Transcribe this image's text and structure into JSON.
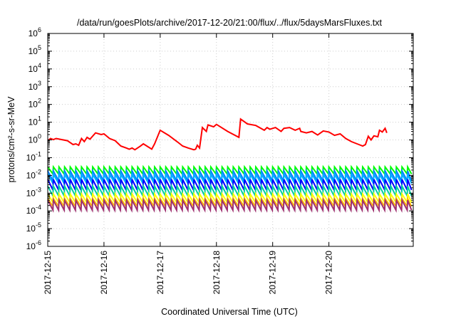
{
  "chart_data": {
    "type": "line",
    "title": "/data/run/goesPlots/archive/2017-12-20/21:00/flux/../flux/5daysMarsFluxes.txt",
    "xlabel": "Coordinated Universal Time (UTC)",
    "ylabel": "protons/cm²-s-sr-MeV",
    "yscale": "log",
    "ylim_exp": [
      -6,
      6
    ],
    "y_ticks": [
      {
        "base": "10",
        "exp": "6"
      },
      {
        "base": "10",
        "exp": "5"
      },
      {
        "base": "10",
        "exp": "4"
      },
      {
        "base": "10",
        "exp": "3"
      },
      {
        "base": "10",
        "exp": "2"
      },
      {
        "base": "10",
        "exp": "1"
      },
      {
        "base": "10",
        "exp": "0"
      },
      {
        "base": "10",
        "exp": "-1"
      },
      {
        "base": "10",
        "exp": "-2"
      },
      {
        "base": "10",
        "exp": "-3"
      },
      {
        "base": "10",
        "exp": "-4"
      },
      {
        "base": "10",
        "exp": "-5"
      },
      {
        "base": "10",
        "exp": "-6"
      }
    ],
    "x_range_days": [
      0,
      6.5
    ],
    "x_ticks": [
      {
        "label": "2017-12-15",
        "day": 0
      },
      {
        "label": "2017-12-16",
        "day": 1
      },
      {
        "label": "2017-12-17",
        "day": 2
      },
      {
        "label": "2017-12-18",
        "day": 3
      },
      {
        "label": "2017-12-19",
        "day": 4
      },
      {
        "label": "2017-12-20",
        "day": 5
      }
    ],
    "grid": true,
    "legend": "none",
    "series": [
      {
        "color": "#ff0000",
        "points": [
          [
            0.0,
            0.9
          ],
          [
            0.05,
            1.2
          ],
          [
            0.1,
            1.05
          ],
          [
            0.15,
            1.2
          ],
          [
            0.35,
            0.9
          ],
          [
            0.45,
            0.55
          ],
          [
            0.5,
            0.6
          ],
          [
            0.55,
            0.5
          ],
          [
            0.6,
            1.2
          ],
          [
            0.65,
            0.8
          ],
          [
            0.7,
            1.4
          ],
          [
            0.75,
            1.1
          ],
          [
            0.85,
            2.5
          ],
          [
            0.95,
            2.0
          ],
          [
            1.0,
            2.2
          ],
          [
            1.1,
            1.2
          ],
          [
            1.2,
            0.9
          ],
          [
            1.3,
            0.45
          ],
          [
            1.4,
            0.35
          ],
          [
            1.45,
            0.3
          ],
          [
            1.5,
            0.35
          ],
          [
            1.55,
            0.28
          ],
          [
            1.65,
            0.45
          ],
          [
            1.7,
            0.6
          ],
          [
            1.85,
            0.3
          ],
          [
            1.9,
            0.6
          ],
          [
            2.0,
            3.5
          ],
          [
            2.15,
            1.8
          ],
          [
            2.3,
            0.8
          ],
          [
            2.4,
            0.45
          ],
          [
            2.5,
            0.35
          ],
          [
            2.6,
            0.28
          ],
          [
            2.63,
            0.3
          ],
          [
            2.66,
            0.5
          ],
          [
            2.7,
            0.35
          ],
          [
            2.75,
            5.0
          ],
          [
            2.82,
            3.0
          ],
          [
            2.85,
            7.0
          ],
          [
            2.95,
            5.5
          ],
          [
            3.0,
            7.5
          ],
          [
            3.2,
            3.0
          ],
          [
            3.4,
            1.4
          ],
          [
            3.43,
            15.0
          ],
          [
            3.55,
            8.0
          ],
          [
            3.7,
            6.5
          ],
          [
            3.85,
            3.5
          ],
          [
            3.9,
            5.0
          ],
          [
            3.95,
            4.0
          ],
          [
            4.05,
            5.0
          ],
          [
            4.15,
            3.0
          ],
          [
            4.2,
            4.5
          ],
          [
            4.3,
            5.0
          ],
          [
            4.4,
            3.5
          ],
          [
            4.48,
            4.5
          ],
          [
            4.5,
            3.0
          ],
          [
            4.6,
            2.5
          ],
          [
            4.7,
            3.0
          ],
          [
            4.8,
            1.9
          ],
          [
            4.9,
            3.2
          ],
          [
            5.0,
            2.8
          ],
          [
            5.1,
            1.8
          ],
          [
            5.2,
            2.2
          ],
          [
            5.3,
            1.2
          ],
          [
            5.4,
            0.8
          ],
          [
            5.5,
            0.6
          ],
          [
            5.6,
            0.45
          ],
          [
            5.65,
            0.55
          ],
          [
            5.7,
            1.6
          ],
          [
            5.75,
            1.0
          ],
          [
            5.8,
            1.7
          ],
          [
            5.87,
            1.5
          ],
          [
            5.9,
            3.5
          ],
          [
            5.95,
            2.8
          ],
          [
            6.0,
            4.5
          ],
          [
            6.03,
            2.5
          ]
        ]
      },
      {
        "color": "#00ff00",
        "sawtooth": {
          "high": 0.03,
          "low": 0.012
        }
      },
      {
        "color": "#0080ff",
        "sawtooth": {
          "high": 0.018,
          "low": 0.005
        }
      },
      {
        "color": "#00b0ff",
        "sawtooth": {
          "high": 0.012,
          "low": 0.0035
        }
      },
      {
        "color": "#0000ff",
        "sawtooth": {
          "high": 0.006,
          "low": 0.0015
        }
      },
      {
        "color": "#00d0a0",
        "sawtooth": {
          "high": 0.0025,
          "low": 0.0007
        }
      },
      {
        "color": "#ffff00",
        "sawtooth": {
          "high": 0.0009,
          "low": 0.0003
        }
      },
      {
        "color": "#ffbb00",
        "sawtooth": {
          "high": 0.0005,
          "low": 0.00018
        }
      },
      {
        "color": "#a03070",
        "sawtooth": {
          "high": 0.0004,
          "low": 0.00011
        }
      }
    ]
  }
}
